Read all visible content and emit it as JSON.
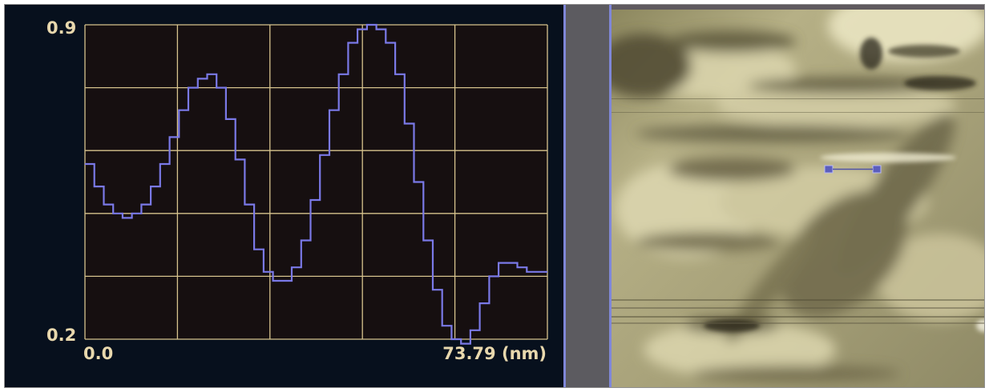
{
  "chart_data": {
    "type": "line",
    "title": "",
    "xlabel": "",
    "ylabel": "",
    "xlim": [
      0.0,
      73.79
    ],
    "ylim": [
      0.2,
      0.9
    ],
    "x_tick_labels": {
      "start": "0.0",
      "end": "73.79 (nm)"
    },
    "y_tick_labels": {
      "top": "0.9",
      "bottom": "0.2"
    },
    "grid": true,
    "colors": {
      "background": "#07101d",
      "plot_background": "#160f10",
      "grid": "#d7c38d",
      "line": "#7a79e7",
      "label": "#e8d8ad"
    },
    "series": [
      {
        "x": [
          0.0,
          1.5,
          3.0,
          4.5,
          6.0,
          7.5,
          9.0,
          10.5,
          12.0,
          13.5,
          15.0,
          16.5,
          18.0,
          19.5,
          21.0,
          22.5,
          24.0,
          25.5,
          27.0,
          28.5,
          30.0,
          31.5,
          33.0,
          34.5,
          36.0,
          37.5,
          39.0,
          40.5,
          42.0,
          43.5,
          45.0,
          46.5,
          48.0,
          49.5,
          51.0,
          52.5,
          54.0,
          55.5,
          57.0,
          58.5,
          60.0,
          61.5,
          63.0,
          64.5,
          66.0,
          67.5,
          69.0,
          70.5,
          72.0,
          73.79
        ],
        "y": [
          0.59,
          0.54,
          0.5,
          0.48,
          0.47,
          0.48,
          0.5,
          0.54,
          0.59,
          0.65,
          0.71,
          0.76,
          0.78,
          0.79,
          0.76,
          0.69,
          0.6,
          0.5,
          0.4,
          0.35,
          0.33,
          0.33,
          0.36,
          0.42,
          0.51,
          0.61,
          0.71,
          0.79,
          0.86,
          0.89,
          0.9,
          0.89,
          0.86,
          0.79,
          0.68,
          0.55,
          0.42,
          0.31,
          0.23,
          0.2,
          0.19,
          0.22,
          0.28,
          0.34,
          0.37,
          0.37,
          0.36,
          0.35,
          0.35,
          0.35
        ]
      }
    ]
  }
}
